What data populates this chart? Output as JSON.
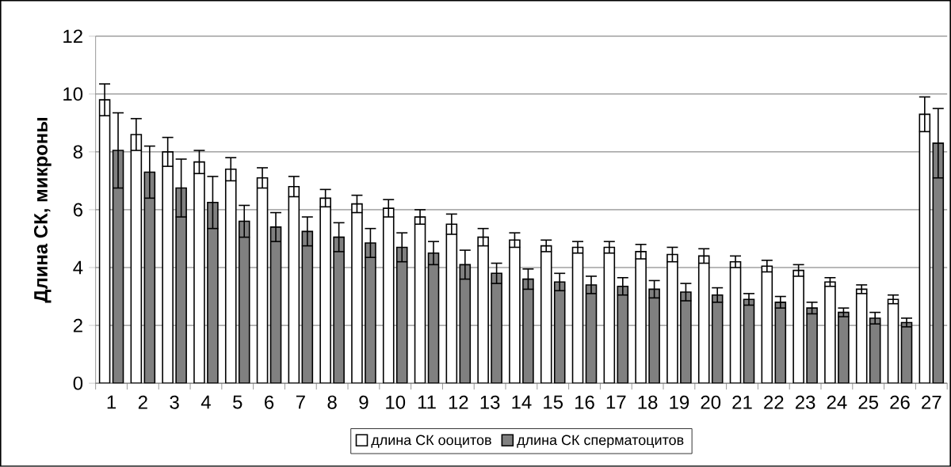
{
  "chart_data": {
    "type": "bar",
    "ylabel": "Длина СК, микроны",
    "categories": [
      "1",
      "2",
      "3",
      "4",
      "5",
      "6",
      "7",
      "8",
      "9",
      "10",
      "11",
      "12",
      "13",
      "14",
      "15",
      "16",
      "17",
      "18",
      "19",
      "20",
      "21",
      "22",
      "23",
      "24",
      "25",
      "26",
      "27"
    ],
    "series": [
      {
        "name": "длина СК ооцитов",
        "color": "#ffffff",
        "values": [
          9.8,
          8.6,
          8.0,
          7.65,
          7.4,
          7.1,
          6.8,
          6.4,
          6.2,
          6.05,
          5.75,
          5.5,
          5.05,
          4.95,
          4.75,
          4.7,
          4.7,
          4.55,
          4.45,
          4.4,
          4.2,
          4.05,
          3.9,
          3.5,
          3.25,
          2.9,
          9.3
        ],
        "errors": [
          0.55,
          0.55,
          0.5,
          0.4,
          0.4,
          0.35,
          0.35,
          0.3,
          0.3,
          0.3,
          0.25,
          0.35,
          0.3,
          0.25,
          0.2,
          0.2,
          0.2,
          0.25,
          0.25,
          0.25,
          0.2,
          0.2,
          0.2,
          0.15,
          0.15,
          0.15,
          0.6
        ]
      },
      {
        "name": "длина СК сперматоцитов",
        "color": "#808080",
        "values": [
          8.05,
          7.3,
          6.75,
          6.25,
          5.6,
          5.4,
          5.25,
          5.05,
          4.85,
          4.7,
          4.5,
          4.1,
          3.8,
          3.6,
          3.5,
          3.4,
          3.35,
          3.25,
          3.15,
          3.05,
          2.9,
          2.8,
          2.6,
          2.45,
          2.25,
          2.1,
          8.3
        ],
        "errors": [
          1.3,
          0.9,
          1.0,
          0.9,
          0.55,
          0.5,
          0.5,
          0.5,
          0.5,
          0.5,
          0.4,
          0.5,
          0.35,
          0.35,
          0.3,
          0.3,
          0.3,
          0.3,
          0.3,
          0.25,
          0.2,
          0.2,
          0.2,
          0.15,
          0.2,
          0.15,
          1.2
        ]
      }
    ],
    "ylim": [
      0,
      12
    ],
    "yticks": [
      0,
      2,
      4,
      6,
      8,
      10,
      12
    ],
    "grid": "y",
    "legend": "bottom"
  }
}
